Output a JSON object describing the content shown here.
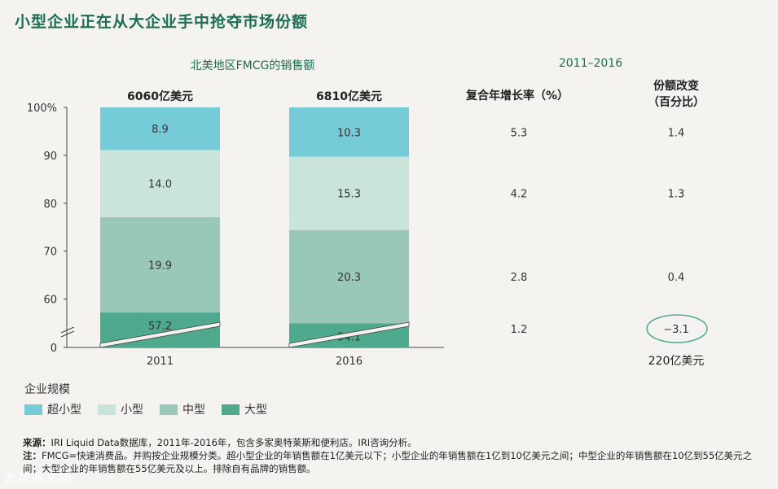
{
  "title": "小型企业正在从大企业手中抢夺市场份额",
  "subtitle_left": "北美地区FMCG的销售额",
  "subtitle_right": "2011–2016",
  "col_cagr_header": "复合年增长率（%）",
  "col_share_header": "份额改变\n（百分比）",
  "colors": {
    "extra_small": "#76cbd9",
    "small": "#c9e4db",
    "medium": "#99c8b8",
    "large": "#4ea98f",
    "accent": "#1b6e50"
  },
  "chart_data": {
    "type": "bar",
    "stacked": true,
    "categories": [
      "2011",
      "2016"
    ],
    "totals": [
      "6060亿美元",
      "6810亿美元"
    ],
    "y_ticks": [
      "100%",
      "90",
      "80",
      "70",
      "60",
      "0"
    ],
    "axis_break": true,
    "series": [
      {
        "name": "大型",
        "key": "large",
        "values": [
          57.2,
          54.1
        ],
        "labels": [
          "57.2",
          "54.1"
        ]
      },
      {
        "name": "中型",
        "key": "medium",
        "values": [
          19.9,
          20.3
        ],
        "labels": [
          "19.9",
          "20.3"
        ]
      },
      {
        "name": "小型",
        "key": "small",
        "values": [
          14.0,
          15.3
        ],
        "labels": [
          "14.0",
          "15.3"
        ]
      },
      {
        "name": "超小型",
        "key": "extra_small",
        "values": [
          8.9,
          10.3
        ],
        "labels": [
          "8.9",
          "10.3"
        ]
      }
    ],
    "cagr": [
      "1.2",
      "2.8",
      "4.2",
      "5.3"
    ],
    "share_change": [
      "−3.1",
      "0.4",
      "1.3",
      "1.4"
    ],
    "share_change_note": "220亿美元"
  },
  "legend": {
    "title": "企业规模",
    "items": [
      {
        "label": "超小型",
        "key": "extra_small"
      },
      {
        "label": "小型",
        "key": "small"
      },
      {
        "label": "中型",
        "key": "medium"
      },
      {
        "label": "大型",
        "key": "large"
      }
    ]
  },
  "notes": {
    "source_label": "来源：",
    "source_text": "IRI Liquid Data数据库，2011年-2016年，包含多家奥特莱斯和便利店。IRI咨询分析。",
    "note_label": "注：",
    "note_text": "FMCG=快速消费品。并购按企业规模分类。超小型企业的年销售额在1亿美元以下；小型企业的年销售额在1亿到10亿美元之间；中型企业的年销售额在10亿到55亿美元之间；大型企业的年销售额在55亿美元及以上。排除自有品牌的销售额。"
  },
  "watermark": "大数据文摘"
}
